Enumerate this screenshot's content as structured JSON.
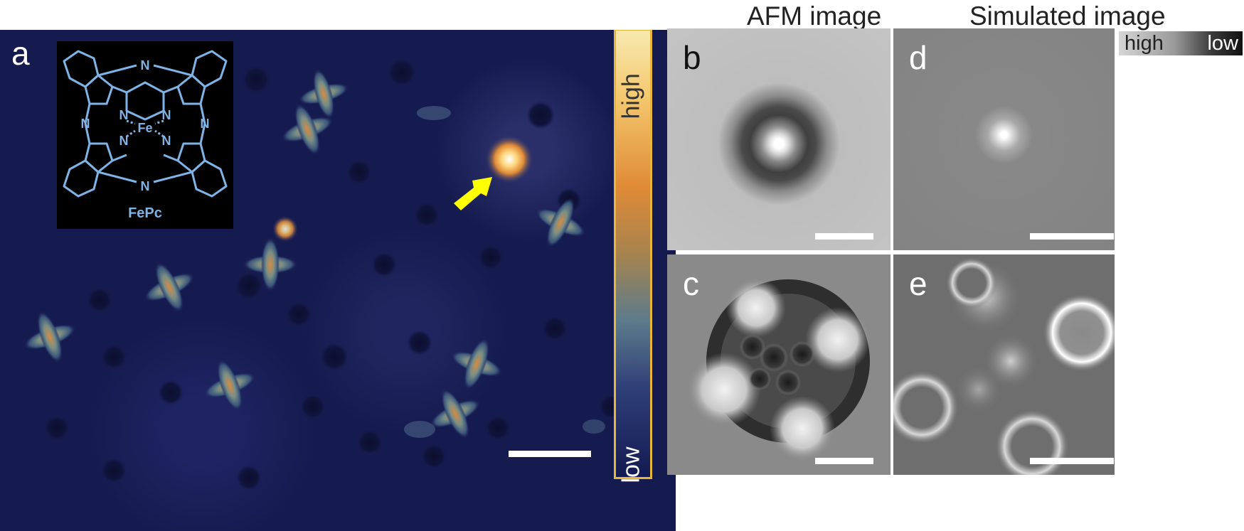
{
  "figure": {
    "column_headers": {
      "afm": "AFM image",
      "simulated": "Simulated image"
    },
    "panels": {
      "a": "a",
      "b": "b",
      "c": "c",
      "d": "d",
      "e": "e"
    },
    "colorbar": {
      "high_label": "high",
      "low_label": "low",
      "colors": [
        "#f6d77c",
        "#e89a3c",
        "#5c7b8c",
        "#141a52"
      ]
    },
    "grayscale_legend": {
      "high_label": "high",
      "low_label": "low"
    },
    "molecule": {
      "name": "FePc",
      "center_atom": "Fe",
      "n_label": "N",
      "color": "#7fb3e6"
    },
    "annotations": {
      "arrow_color": "#ffff00",
      "panel_a_background": "#161b4f"
    }
  }
}
